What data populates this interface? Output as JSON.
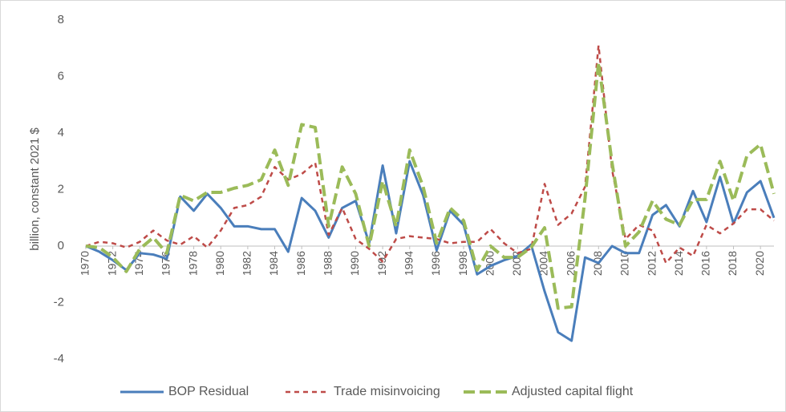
{
  "chart_data": {
    "type": "line",
    "y_label": "billion, constant 2021 $",
    "x": [
      1970,
      1971,
      1972,
      1973,
      1974,
      1975,
      1976,
      1977,
      1978,
      1979,
      1980,
      1981,
      1982,
      1983,
      1984,
      1985,
      1986,
      1987,
      1988,
      1989,
      1990,
      1991,
      1992,
      1993,
      1994,
      1995,
      1996,
      1997,
      1998,
      1999,
      2000,
      2001,
      2002,
      2003,
      2004,
      2005,
      2006,
      2007,
      2008,
      2009,
      2010,
      2011,
      2012,
      2013,
      2014,
      2015,
      2016,
      2017,
      2018,
      2019,
      2020,
      2021
    ],
    "xlim": [
      1970,
      2021
    ],
    "xticks": [
      1970,
      1972,
      1974,
      1976,
      1978,
      1980,
      1982,
      1984,
      1986,
      1988,
      1990,
      1992,
      1994,
      1996,
      1998,
      2000,
      2002,
      2004,
      2006,
      2008,
      2010,
      2012,
      2014,
      2016,
      2018,
      2020
    ],
    "ylim": [
      -4,
      8
    ],
    "yticks": [
      -4,
      -2,
      0,
      2,
      4,
      6,
      8
    ],
    "grid": false,
    "legend": "bottom",
    "series": [
      {
        "name": "BOP Residual",
        "color": "#4a7ebb",
        "dash": "solid",
        "values": [
          0,
          -0.2,
          -0.5,
          -0.85,
          -0.25,
          -0.3,
          -0.45,
          1.75,
          1.25,
          1.85,
          1.35,
          0.7,
          0.7,
          0.6,
          0.6,
          -0.2,
          1.7,
          1.25,
          0.3,
          1.35,
          1.6,
          0.1,
          2.85,
          0.45,
          3.0,
          1.8,
          -0.15,
          1.25,
          0.75,
          -1.0,
          -0.7,
          -0.5,
          -0.35,
          0.05,
          -1.6,
          -3.05,
          -3.35,
          -0.4,
          -0.6,
          0.0,
          -0.25,
          -0.25,
          1.1,
          1.45,
          0.7,
          1.95,
          0.85,
          2.45,
          0.8,
          1.9,
          2.3,
          1.0
        ]
      },
      {
        "name": "Trade misinvoicing",
        "color": "#be4b48",
        "dash": "short",
        "values": [
          0,
          0.15,
          0.1,
          -0.05,
          0.15,
          0.55,
          0.2,
          0.05,
          0.35,
          -0.05,
          0.55,
          1.35,
          1.45,
          1.75,
          2.8,
          2.35,
          2.55,
          2.95,
          0.4,
          1.35,
          0.25,
          -0.1,
          -0.55,
          0.25,
          0.35,
          0.3,
          0.25,
          0.1,
          0.15,
          0.15,
          0.6,
          0.1,
          -0.25,
          -0.1,
          2.2,
          0.75,
          1.15,
          2.1,
          7.1,
          2.7,
          0.25,
          0.75,
          0.55,
          -0.6,
          -0.05,
          -0.35,
          0.75,
          0.45,
          0.8,
          1.3,
          1.3,
          0.9
        ]
      },
      {
        "name": "Adjusted capital flight",
        "color": "#9bbb59",
        "dash": "long",
        "values": [
          0,
          -0.05,
          -0.4,
          -0.9,
          -0.1,
          0.3,
          -0.25,
          1.8,
          1.6,
          1.9,
          1.9,
          2.05,
          2.15,
          2.35,
          3.4,
          2.15,
          4.3,
          4.2,
          0.7,
          2.8,
          1.85,
          0.0,
          2.3,
          0.7,
          3.4,
          2.1,
          0.1,
          1.35,
          0.9,
          -0.85,
          0.0,
          -0.4,
          -0.4,
          -0.05,
          0.65,
          -2.2,
          -2.15,
          1.7,
          6.5,
          2.95,
          0.0,
          0.5,
          1.6,
          0.95,
          0.75,
          1.65,
          1.65,
          3.0,
          1.6,
          3.2,
          3.6,
          1.85
        ]
      }
    ]
  }
}
